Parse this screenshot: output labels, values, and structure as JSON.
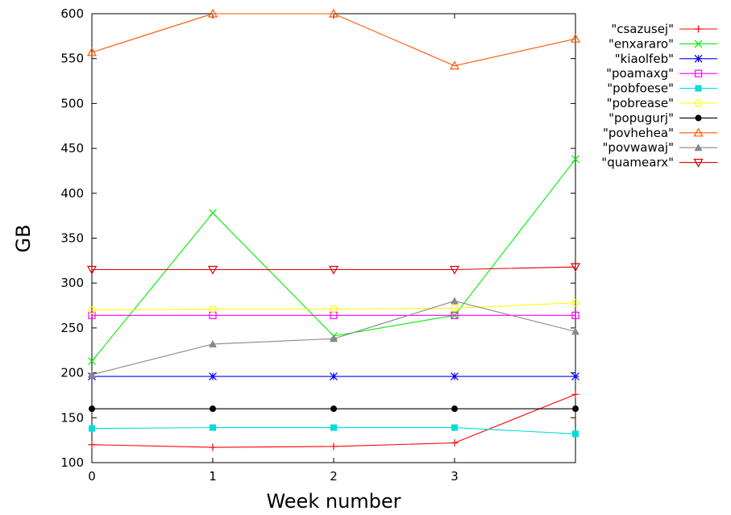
{
  "chart_data": {
    "type": "line",
    "xlabel": "Week number",
    "ylabel": "GB",
    "x": [
      0,
      1,
      2,
      3,
      4
    ],
    "xticks": [
      "0",
      "1",
      "2",
      "3"
    ],
    "yticks": [
      "100",
      "150",
      "200",
      "250",
      "300",
      "350",
      "400",
      "450",
      "500",
      "550",
      "600"
    ],
    "xlim": [
      0,
      4
    ],
    "ylim": [
      100,
      600
    ],
    "grid": false,
    "legend_position": "right",
    "series": [
      {
        "name": "\"csazusej\"",
        "color": "#ff0000",
        "marker": "plus",
        "values": [
          120,
          117,
          118,
          122,
          176
        ]
      },
      {
        "name": "\"enxararo\"",
        "color": "#00ee00",
        "marker": "cross",
        "values": [
          213,
          378,
          241,
          264,
          438
        ]
      },
      {
        "name": "\"kiaolfeb\"",
        "color": "#0000ff",
        "marker": "star",
        "values": [
          196,
          196,
          196,
          196,
          196
        ]
      },
      {
        "name": "\"poamaxg\"",
        "color": "#ff00ff",
        "marker": "square-open",
        "values": [
          264,
          264,
          264,
          264,
          264
        ]
      },
      {
        "name": "\"pobfoese\"",
        "color": "#00dddd",
        "marker": "square-filled",
        "values": [
          138,
          139,
          139,
          139,
          132
        ]
      },
      {
        "name": "\"pobrease\"",
        "color": "#ffff00",
        "marker": "circle-open",
        "values": [
          270,
          271,
          271,
          272,
          278
        ]
      },
      {
        "name": "\"popugurj\"",
        "color": "#000000",
        "marker": "circle-filled",
        "values": [
          160,
          160,
          160,
          160,
          160
        ]
      },
      {
        "name": "\"povhehea\"",
        "color": "#ff5500",
        "marker": "triangle-open",
        "values": [
          557,
          600,
          600,
          542,
          572
        ]
      },
      {
        "name": "\"povwawaj\"",
        "color": "#888888",
        "marker": "triangle-filled",
        "values": [
          198,
          232,
          238,
          280,
          246
        ]
      },
      {
        "name": "\"quamearx\"",
        "color": "#dd0000",
        "marker": "triangle-down",
        "values": [
          315,
          315,
          315,
          315,
          318
        ]
      }
    ]
  }
}
